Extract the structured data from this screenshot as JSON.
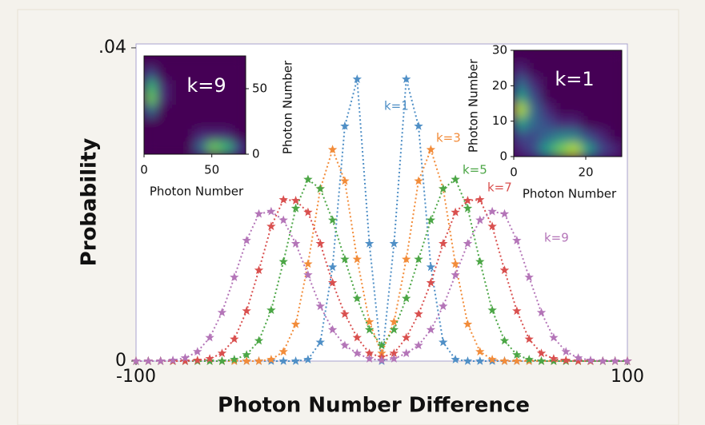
{
  "chart_data": [
    {
      "type": "line",
      "xlabel": "Photon Number Difference",
      "ylabel": "Probability",
      "xlim": [
        -100,
        100
      ],
      "ylim": [
        0,
        0.0405
      ],
      "xticks": [
        -100,
        100
      ],
      "yticks": [
        0,
        {
          "value": 0.04,
          "label": ".04"
        }
      ],
      "x": [
        -100,
        -95,
        -90,
        -85,
        -80,
        -75,
        -70,
        -65,
        -60,
        -55,
        -50,
        -45,
        -40,
        -35,
        -30,
        -25,
        -20,
        -15,
        -10,
        -5,
        0,
        5,
        10,
        15,
        20,
        25,
        30,
        35,
        40,
        45,
        50,
        55,
        60,
        65,
        70,
        75,
        80,
        85,
        90,
        95,
        100
      ],
      "series": [
        {
          "name": "k=1",
          "color": "#4f8fc6",
          "values": [
            0,
            0,
            0,
            0,
            0,
            0,
            0,
            0,
            0,
            0,
            0,
            0,
            0,
            0,
            0.0002,
            0.0024,
            0.012,
            0.03,
            0.036,
            0.015,
            0,
            0.015,
            0.036,
            0.03,
            0.012,
            0.0024,
            0.0002,
            0,
            0,
            0,
            0,
            0,
            0,
            0,
            0,
            0,
            0,
            0,
            0,
            0,
            0
          ]
        },
        {
          "name": "k=3",
          "color": "#f28c3a",
          "values": [
            0,
            0,
            0,
            0,
            0,
            0,
            0,
            0,
            0,
            0,
            0,
            0.0002,
            0.0012,
            0.0047,
            0.0124,
            0.022,
            0.027,
            0.023,
            0.013,
            0.005,
            0.001,
            0.005,
            0.013,
            0.023,
            0.027,
            0.022,
            0.0124,
            0.0047,
            0.0012,
            0.0002,
            0,
            0,
            0,
            0,
            0,
            0,
            0,
            0,
            0,
            0,
            0
          ]
        },
        {
          "name": "k=5",
          "color": "#4ca646",
          "values": [
            0,
            0,
            0,
            0,
            0,
            0,
            0,
            0,
            0.0002,
            0.0008,
            0.0026,
            0.0065,
            0.0127,
            0.0195,
            0.0232,
            0.022,
            0.018,
            0.013,
            0.008,
            0.004,
            0.002,
            0.004,
            0.008,
            0.013,
            0.018,
            0.022,
            0.0232,
            0.0195,
            0.0127,
            0.0065,
            0.0026,
            0.0008,
            0.0002,
            0,
            0,
            0,
            0,
            0,
            0,
            0,
            0
          ]
        },
        {
          "name": "k=7",
          "color": "#d9504f",
          "values": [
            0,
            0,
            0,
            0,
            0,
            0.0001,
            0.0003,
            0.001,
            0.0028,
            0.0064,
            0.0116,
            0.0172,
            0.0206,
            0.0205,
            0.019,
            0.015,
            0.01,
            0.006,
            0.003,
            0.001,
            0.0005,
            0.001,
            0.003,
            0.006,
            0.01,
            0.015,
            0.019,
            0.0205,
            0.0206,
            0.0172,
            0.0116,
            0.0064,
            0.0028,
            0.001,
            0.0003,
            0.0001,
            0,
            0,
            0,
            0,
            0
          ]
        },
        {
          "name": "k=9",
          "color": "#b475b8",
          "values": [
            0,
            0,
            0,
            0.0001,
            0.0004,
            0.0012,
            0.003,
            0.0062,
            0.0107,
            0.0154,
            0.0188,
            0.0191,
            0.018,
            0.015,
            0.011,
            0.007,
            0.004,
            0.002,
            0.001,
            0.0003,
            0.0001,
            0.0003,
            0.001,
            0.002,
            0.004,
            0.007,
            0.011,
            0.015,
            0.018,
            0.0191,
            0.0188,
            0.0154,
            0.0107,
            0.0062,
            0.003,
            0.0012,
            0.0004,
            0.0001,
            0,
            0,
            0
          ]
        }
      ]
    },
    {
      "type": "heatmap",
      "title": "k=9",
      "xlabel": "Photon Number",
      "ylabel": "Photon Number",
      "xlim": [
        0,
        75
      ],
      "ylim": [
        0,
        75
      ],
      "xticks": [
        0,
        50
      ],
      "yticks": [
        0,
        50
      ],
      "z": [
        [
          0,
          0,
          0,
          0,
          0,
          0,
          0,
          0
        ],
        [
          0.2,
          0,
          0,
          0,
          0,
          0,
          0,
          0
        ],
        [
          0.7,
          0.1,
          0,
          0,
          0,
          0,
          0,
          0
        ],
        [
          0.8,
          0.1,
          0,
          0,
          0,
          0,
          0,
          0
        ],
        [
          0.3,
          0,
          0,
          0,
          0,
          0,
          0,
          0
        ],
        [
          0,
          0,
          0,
          0,
          0,
          0,
          0,
          0
        ],
        [
          0,
          0,
          0,
          0,
          0.1,
          0.1,
          0.1,
          0
        ],
        [
          0,
          0,
          0,
          0,
          0.3,
          0.8,
          0.7,
          0.2
        ]
      ]
    },
    {
      "type": "heatmap",
      "title": "k=1",
      "xlabel": "Photon Number",
      "ylabel": "Photon Number",
      "xlim": [
        0,
        30
      ],
      "ylim": [
        0,
        30
      ],
      "xticks": [
        0,
        20
      ],
      "yticks": [
        0,
        10,
        20,
        30
      ],
      "z": [
        [
          0,
          0,
          0,
          0,
          0,
          0,
          0,
          0
        ],
        [
          0.1,
          0,
          0,
          0,
          0,
          0,
          0,
          0
        ],
        [
          0.3,
          0.1,
          0,
          0,
          0,
          0,
          0,
          0
        ],
        [
          0.6,
          0.2,
          0,
          0,
          0,
          0,
          0,
          0
        ],
        [
          0.9,
          0.3,
          0.1,
          0,
          0,
          0,
          0,
          0
        ],
        [
          0.5,
          0.3,
          0.2,
          0.1,
          0.1,
          0,
          0,
          0
        ],
        [
          0.2,
          0.2,
          0.3,
          0.4,
          0.4,
          0.2,
          0.1,
          0
        ],
        [
          0.1,
          0.2,
          0.5,
          0.8,
          0.9,
          0.6,
          0.2,
          0.1
        ]
      ]
    }
  ]
}
